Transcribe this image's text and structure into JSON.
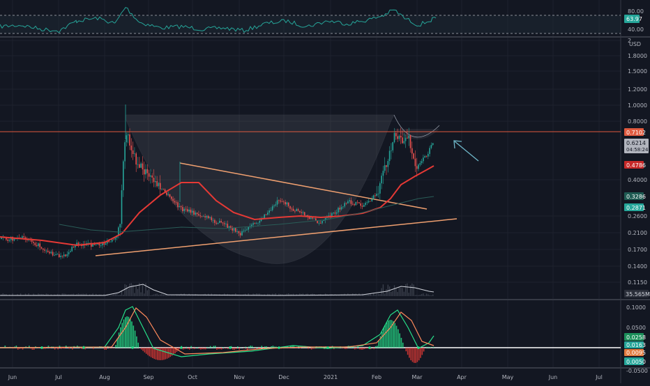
{
  "colors": {
    "background": "#131722",
    "grid": "#1e222d",
    "divider": "#363a45",
    "axis_text": "#b2b5be",
    "candle_up": "#26a69a",
    "candle_down": "#ef5350",
    "ma_fast": "#e53935",
    "ma_slow": "#2a5d58",
    "resistance": "#e05a3f",
    "trendline": "#f0a070",
    "cup_fill": "#787b86",
    "rsi_line": "#26a69a",
    "rsi_band": "#b2b5be",
    "macd_line": "#26e08a",
    "macd_signal": "#ff8a5c",
    "volume_line": "#d1d4dc",
    "arrow": "#6fb7c9"
  },
  "axes": {
    "x_ticks": [
      "Jun",
      "Jul",
      "Aug",
      "Sep",
      "Oct",
      "Nov",
      "Dec",
      "2021",
      "Feb",
      "Mar",
      "Apr",
      "May",
      "Jun",
      "Jul"
    ],
    "rsi_ticks": [
      "80.00",
      "40.00"
    ],
    "price_ticks": [
      "2",
      "1.8000",
      "1.5000",
      "1.2000",
      "1.0000",
      "0.8000",
      "0.4000",
      "0.2600",
      "0.2100",
      "0.1700",
      "0.1400",
      "0.1150"
    ],
    "price_unit": "USD",
    "macd_ticks": [
      "0.1000",
      "0.0500",
      "-0.0500"
    ]
  },
  "labels": {
    "rsi_value": "63.97",
    "resistance": "0.7102",
    "last_price": "0.6214",
    "countdown": "04:58:24",
    "ma_fast": "0.4786",
    "ma_slow_a": "0.3286",
    "ma_slow_b": "0.2871",
    "volume": "35.565M",
    "macd_a": "0.0258",
    "macd_b": "0.0163",
    "macd_c": "0.0095",
    "macd_d": "0.0050"
  },
  "chart_data": {
    "type": "line",
    "price_scale": "log",
    "series_candles_close_usd": [
      0.205,
      0.2,
      0.19,
      0.155,
      0.175,
      0.18,
      0.3,
      0.82,
      0.55,
      0.42,
      0.34,
      0.3,
      0.28,
      0.25,
      0.22,
      0.26,
      0.3,
      0.35,
      0.32,
      0.27,
      0.28,
      0.31,
      0.3,
      0.38,
      0.6,
      0.74,
      0.58,
      0.52,
      0.55,
      0.62
    ],
    "resistance_usd": 0.7102,
    "last_price_usd": 0.6214,
    "rsi_last": 63.97,
    "volume_last": "35.565M"
  }
}
